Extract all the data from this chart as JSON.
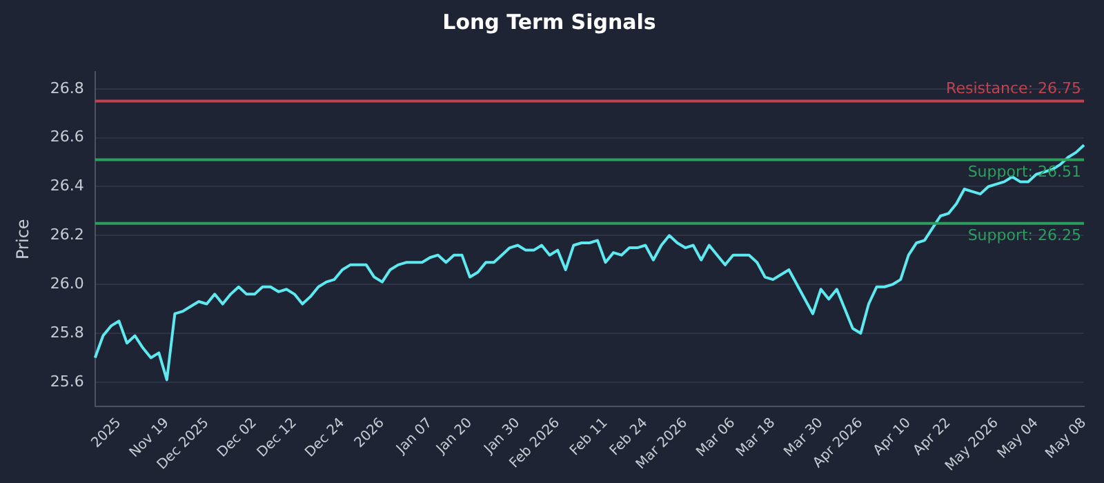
{
  "chart_data": {
    "type": "line",
    "title": "Long Term Signals",
    "ylabel": "Price",
    "categories": [
      null,
      null,
      null,
      "2025",
      null,
      null,
      null,
      null,
      null,
      "Nov 19",
      null,
      null,
      null,
      null,
      "Dec 2025",
      null,
      null,
      null,
      null,
      null,
      "Dec 02",
      null,
      null,
      null,
      null,
      "Dec 12",
      null,
      null,
      null,
      null,
      null,
      "Dec 24",
      null,
      null,
      null,
      null,
      "2026",
      null,
      null,
      null,
      null,
      null,
      "Jan 07",
      null,
      null,
      null,
      null,
      "Jan 20",
      null,
      null,
      null,
      null,
      null,
      "Jan 30",
      null,
      null,
      null,
      null,
      "Feb 2026",
      null,
      null,
      null,
      null,
      null,
      "Feb 11",
      null,
      null,
      null,
      null,
      "Feb 24",
      null,
      null,
      null,
      null,
      "Mar 2026",
      null,
      null,
      null,
      null,
      null,
      "Mar 06",
      null,
      null,
      null,
      null,
      "Mar 18",
      null,
      null,
      null,
      null,
      null,
      "Mar 30",
      null,
      null,
      null,
      null,
      "Apr 2026",
      null,
      null,
      null,
      null,
      null,
      "Apr 10",
      null,
      null,
      null,
      null,
      "Apr 22",
      null,
      null,
      null,
      null,
      null,
      "May 2026",
      null,
      null,
      null,
      null,
      "May 04",
      null,
      null,
      null,
      null,
      null,
      "May 08"
    ],
    "series": [
      {
        "color": "#5ee8f0",
        "values": [
          25.7,
          25.79,
          25.83,
          25.85,
          25.76,
          25.79,
          25.74,
          25.7,
          25.72,
          25.61,
          25.88,
          25.89,
          25.91,
          25.93,
          25.92,
          25.96,
          25.92,
          25.96,
          25.99,
          25.96,
          25.96,
          25.99,
          25.99,
          25.97,
          25.98,
          25.96,
          25.92,
          25.95,
          25.99,
          26.01,
          26.02,
          26.06,
          26.08,
          26.08,
          26.08,
          26.03,
          26.01,
          26.06,
          26.08,
          26.09,
          26.09,
          26.09,
          26.11,
          26.12,
          26.09,
          26.12,
          26.12,
          26.03,
          26.05,
          26.09,
          26.09,
          26.12,
          26.15,
          26.16,
          26.14,
          26.14,
          26.16,
          26.12,
          26.14,
          26.06,
          26.16,
          26.17,
          26.17,
          26.18,
          26.09,
          26.13,
          26.12,
          26.15,
          26.15,
          26.16,
          26.1,
          26.16,
          26.2,
          26.17,
          26.15,
          26.16,
          26.1,
          26.16,
          26.12,
          26.08,
          26.12,
          26.12,
          26.12,
          26.09,
          26.03,
          26.02,
          26.04,
          26.06,
          26.0,
          25.94,
          25.88,
          25.98,
          25.94,
          25.98,
          25.9,
          25.82,
          25.8,
          25.92,
          25.99,
          25.99,
          26.0,
          26.02,
          26.12,
          26.17,
          26.18,
          26.23,
          26.28,
          26.29,
          26.33,
          26.39,
          26.38,
          26.37,
          26.4,
          26.41,
          26.42,
          26.44,
          26.42,
          26.42,
          26.45,
          26.46,
          26.47,
          26.49,
          26.52,
          26.54,
          26.57
        ]
      }
    ],
    "ylim": [
      25.5,
      26.87
    ],
    "yticks": [
      25.6,
      25.8,
      {
        "value": 26,
        "label": "26.0"
      },
      26.2,
      26.4,
      26.6,
      26.8
    ],
    "grid": "y",
    "legend": false,
    "marker": "none",
    "line_style": "solid",
    "ref_lines": [
      {
        "axis": "y",
        "value": 26.75,
        "label": "Resistance: 26.75",
        "color": "#c4424e"
      },
      {
        "axis": "y",
        "value": 26.51,
        "label": "Support: 26.51",
        "color": "#2e9e5e"
      },
      {
        "axis": "y",
        "value": 26.25,
        "label": "Support: 26.25",
        "color": "#2e9e5e"
      }
    ]
  }
}
